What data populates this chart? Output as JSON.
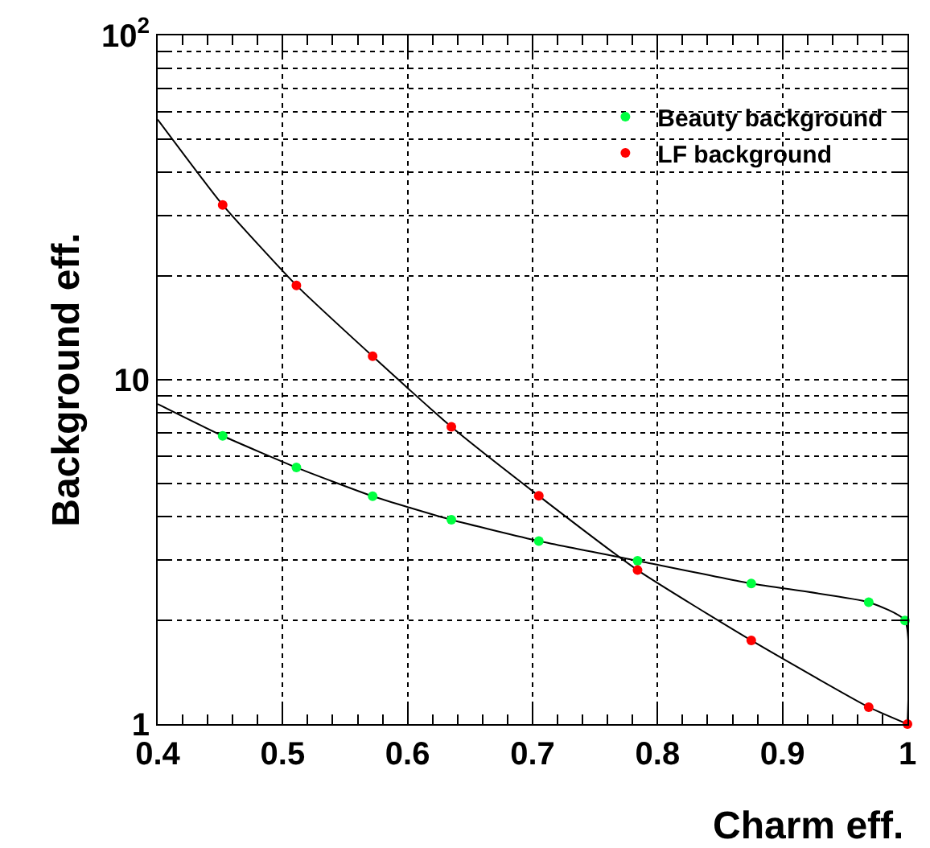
{
  "chart_data": {
    "type": "scatter",
    "xlabel": "Charm eff.",
    "ylabel": "Background eff.",
    "log": "y",
    "grid": true,
    "legend": "top right",
    "xlim": [
      0.4,
      1.0
    ],
    "xticks": [
      0.4,
      0.5,
      0.6,
      0.7,
      0.8,
      0.9,
      {
        "value": 1.0,
        "label": "1"
      }
    ],
    "ylim": [
      1,
      100
    ],
    "yticks": [
      1,
      {
        "value": 2,
        "label": null
      },
      {
        "value": 3,
        "label": null
      },
      {
        "value": 4,
        "label": null
      },
      {
        "value": 5,
        "label": null
      },
      {
        "value": 6,
        "label": null
      },
      {
        "value": 7,
        "label": null
      },
      {
        "value": 8,
        "label": null
      },
      {
        "value": 9,
        "label": null
      },
      10,
      {
        "value": 20,
        "label": null
      },
      {
        "value": 30,
        "label": null
      },
      {
        "value": 40,
        "label": null
      },
      {
        "value": 50,
        "label": null
      },
      {
        "value": 60,
        "label": null
      },
      {
        "value": 70,
        "label": null
      },
      {
        "value": 80,
        "label": null
      },
      {
        "value": 90,
        "label": null
      },
      {
        "value": 100,
        "label": "10$^{2}$"
      }
    ],
    "series": [
      {
        "type": "line",
        "color": "#000000",
        "marker": "none",
        "line_style": "solid",
        "x": [
          0.4,
          0.452,
          0.511,
          0.572,
          0.635,
          0.705,
          0.784,
          0.875,
          0.969,
          0.998,
          1.0
        ],
        "values": [
          8.5,
          6.87,
          5.56,
          4.59,
          3.92,
          3.4,
          2.98,
          2.56,
          2.26,
          2.0,
          1.0
        ]
      },
      {
        "type": "line",
        "color": "#000000",
        "marker": "none",
        "line_style": "solid",
        "x": [
          0.4,
          0.452,
          0.511,
          0.572,
          0.635,
          0.705,
          0.784,
          0.875,
          0.969,
          1.0
        ],
        "values": [
          57,
          32.2,
          18.8,
          11.7,
          7.3,
          4.6,
          2.8,
          1.75,
          1.12,
          1.0
        ]
      },
      {
        "name": "Beauty background",
        "color": "#00ff40",
        "marker": "circle",
        "x": [
          0.452,
          0.511,
          0.572,
          0.635,
          0.705,
          0.784,
          0.875,
          0.969,
          0.998
        ],
        "values": [
          6.87,
          5.56,
          4.59,
          3.92,
          3.4,
          2.98,
          2.56,
          2.26,
          2.0
        ]
      },
      {
        "name": "LF background",
        "color": "#ff0000",
        "marker": "circle",
        "x": [
          0.452,
          0.511,
          0.572,
          0.635,
          0.705,
          0.784,
          0.875,
          0.969,
          1.0
        ],
        "values": [
          32.2,
          18.8,
          11.7,
          7.3,
          4.6,
          2.8,
          1.75,
          1.12,
          1.0
        ]
      }
    ]
  }
}
